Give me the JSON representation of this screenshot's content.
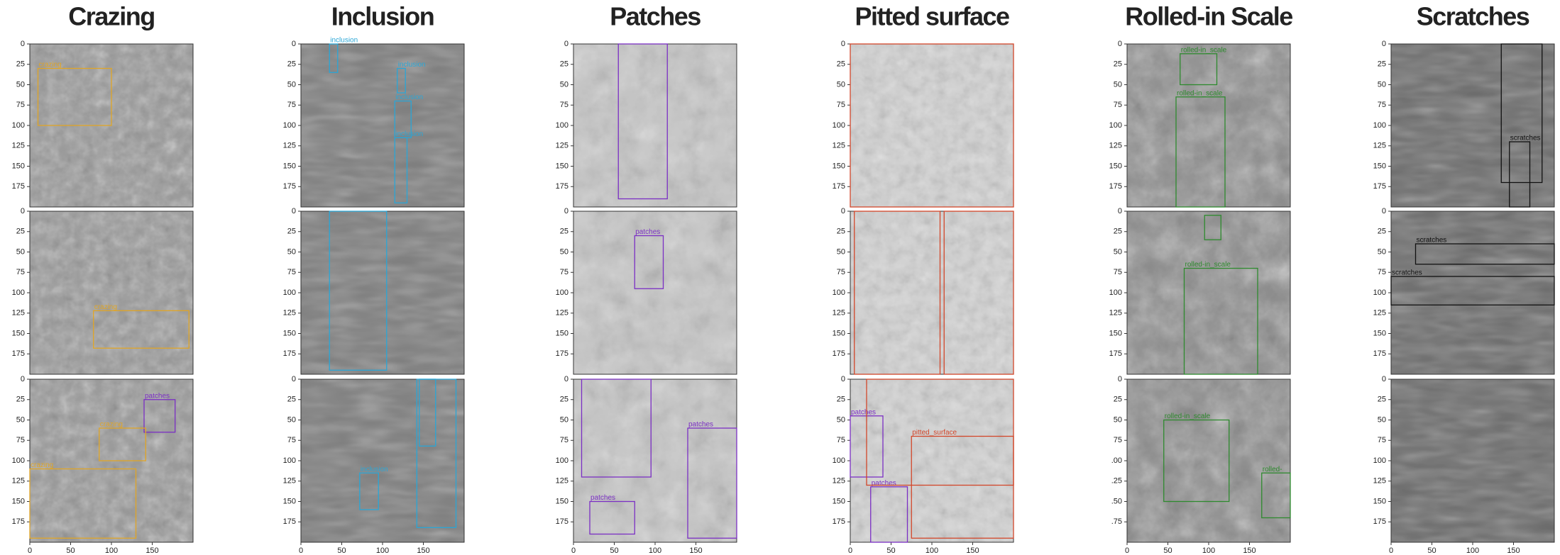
{
  "axis_range": [
    0,
    200
  ],
  "yticks": [
    0,
    25,
    50,
    75,
    100,
    125,
    150,
    175
  ],
  "xticks": [
    0,
    50,
    100,
    150
  ],
  "columns": [
    {
      "title": "Crazing",
      "color": "#e0a526",
      "panels": [
        {
          "boxes": [
            {
              "label": "crazing",
              "box": [
                10,
                30,
                100,
                100
              ]
            }
          ]
        },
        {
          "boxes": [
            {
              "label": "crazing",
              "box": [
                78,
                122,
                195,
                168
              ]
            }
          ]
        },
        {
          "boxes": [
            {
              "label": "patches",
              "color": "#7b2fc4",
              "box": [
                140,
                25,
                178,
                65
              ]
            },
            {
              "label": "crazing",
              "box": [
                85,
                60,
                142,
                100
              ]
            },
            {
              "label": "crazing",
              "box": [
                0,
                110,
                130,
                195
              ]
            }
          ]
        }
      ]
    },
    {
      "title": "Inclusion",
      "color": "#2aa6d6",
      "panels": [
        {
          "boxes": [
            {
              "label": "inclusion",
              "box": [
                35,
                0,
                45,
                35
              ]
            },
            {
              "label": "inclusion",
              "box": [
                118,
                30,
                128,
                60
              ]
            },
            {
              "label": "inclusion",
              "box": [
                115,
                70,
                135,
                115
              ]
            },
            {
              "label": "inclusion",
              "box": [
                115,
                115,
                130,
                195
              ]
            }
          ]
        },
        {
          "boxes": [
            {
              "box": [
                35,
                0,
                105,
                195
              ]
            }
          ]
        },
        {
          "boxes": [
            {
              "box": [
                145,
                0,
                165,
                82
              ]
            },
            {
              "label": "inclusion",
              "box": [
                72,
                115,
                95,
                160
              ]
            },
            {
              "box": [
                142,
                0,
                190,
                182
              ]
            }
          ]
        }
      ]
    },
    {
      "title": "Patches",
      "color": "#7b2fc4",
      "panels": [
        {
          "boxes": [
            {
              "box": [
                55,
                0,
                115,
                190
              ]
            }
          ]
        },
        {
          "boxes": [
            {
              "label": "patches",
              "box": [
                75,
                30,
                110,
                95
              ]
            }
          ]
        },
        {
          "boxes": [
            {
              "box": [
                10,
                0,
                95,
                120
              ]
            },
            {
              "label": "patches",
              "box": [
                20,
                150,
                75,
                190
              ]
            },
            {
              "label": "patches",
              "box": [
                140,
                60,
                200,
                195
              ]
            }
          ]
        }
      ]
    },
    {
      "title": "Pitted surface",
      "color": "#d2462a",
      "panels": [
        {
          "boxes": [
            {
              "box": [
                0,
                0,
                200,
                200
              ]
            }
          ]
        },
        {
          "boxes": [
            {
              "box": [
                5,
                0,
                110,
                200
              ]
            },
            {
              "box": [
                115,
                0,
                200,
                200
              ]
            }
          ]
        },
        {
          "boxes": [
            {
              "label": "patches",
              "color": "#7b2fc4",
              "box": [
                0,
                45,
                40,
                120
              ]
            },
            {
              "label": "patches",
              "color": "#7b2fc4",
              "box": [
                25,
                132,
                70,
                200
              ]
            },
            {
              "label": "pitted_surface",
              "box": [
                75,
                70,
                200,
                195
              ]
            },
            {
              "box": [
                20,
                0,
                200,
                130
              ]
            }
          ]
        }
      ]
    },
    {
      "title": "Rolled-in Scale",
      "color": "#2e8a2e",
      "panels": [
        {
          "boxes": [
            {
              "label": "rolled-in_scale",
              "box": [
                65,
                12,
                110,
                50
              ]
            },
            {
              "label": "rolled-in_scale",
              "box": [
                60,
                65,
                120,
                200
              ]
            }
          ]
        },
        {
          "boxes": [
            {
              "box": [
                95,
                5,
                115,
                35
              ]
            },
            {
              "label": "rolled-in_scale",
              "box": [
                70,
                70,
                160,
                200
              ]
            }
          ]
        },
        {
          "yticks": [
            0,
            25,
            50,
            75,
            {
              "value": 100,
              "label": ".00"
            },
            {
              "value": 125,
              "label": ".25"
            },
            {
              "value": 150,
              "label": ".50"
            },
            {
              "value": 175,
              "label": ".75"
            }
          ],
          "boxes": [
            {
              "label": "rolled-in_scale",
              "box": [
                45,
                50,
                125,
                150
              ]
            },
            {
              "label": "rolled-",
              "box": [
                165,
                115,
                200,
                170
              ]
            }
          ]
        }
      ]
    },
    {
      "title": "Scratches",
      "color": "#111111",
      "panels": [
        {
          "boxes": [
            {
              "box": [
                135,
                0,
                185,
                170
              ]
            },
            {
              "label": "scratches",
              "box": [
                145,
                120,
                170,
                200
              ]
            }
          ]
        },
        {
          "boxes": [
            {
              "label": "scratches",
              "box": [
                30,
                40,
                200,
                65
              ]
            },
            {
              "label": "scratches",
              "box": [
                0,
                80,
                200,
                115
              ]
            }
          ]
        },
        {
          "boxes": []
        }
      ]
    }
  ]
}
